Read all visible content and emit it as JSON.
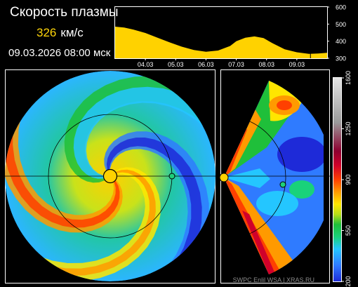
{
  "header": {
    "title": "Скорость плазмы",
    "speed_value": "326",
    "speed_unit": "км/с",
    "datetime": "09.03.2026 08:00 мск"
  },
  "footer": {
    "credits": "SWPC Enlil WSA  |  XRAS.RU"
  },
  "colors": {
    "series_fill": "#ffd200",
    "speed_text": "#ffd60a",
    "background": "#000000",
    "frame": "#ffffff"
  },
  "chart_data": [
    {
      "type": "area",
      "x_tick_labels": [
        "04.03",
        "05.03",
        "06.03",
        "07.03",
        "08.03",
        "09.03"
      ],
      "y_tick_labels": [
        "600",
        "500",
        "400",
        "300"
      ],
      "ylim": [
        300,
        600
      ],
      "xlim": [
        3.0,
        10.0
      ],
      "series": [
        {
          "x": [
            3.0,
            3.3,
            3.6,
            4.0,
            4.4,
            4.8,
            5.2,
            5.6,
            6.0,
            6.4,
            6.8,
            7.0,
            7.3,
            7.6,
            7.9,
            8.2,
            8.6,
            9.0,
            9.4,
            9.7,
            10.0
          ],
          "values": [
            485,
            480,
            468,
            448,
            420,
            393,
            368,
            348,
            338,
            345,
            372,
            400,
            420,
            428,
            418,
            388,
            352,
            335,
            326,
            328,
            332
          ]
        }
      ],
      "marker": {
        "x": 9.45,
        "label": "current"
      }
    },
    {
      "type": "heatmap",
      "panel": "ecliptic plane view",
      "colorbar_ticks": [
        "1600",
        "1250",
        "900",
        "550",
        "200"
      ],
      "colorbar_range": [
        200,
        1600
      ],
      "colorbar_stops": [
        "#1e2ad8",
        "#2f7bff",
        "#24c6ff",
        "#19d27a",
        "#1fbf3a",
        "#b8dd18",
        "#ffe600",
        "#ff9a00",
        "#ff4000",
        "#d0002a",
        "#8e0030",
        "#9a9a9a",
        "#e5e5e5"
      ]
    },
    {
      "type": "heatmap",
      "panel": "meridional plane view"
    }
  ]
}
